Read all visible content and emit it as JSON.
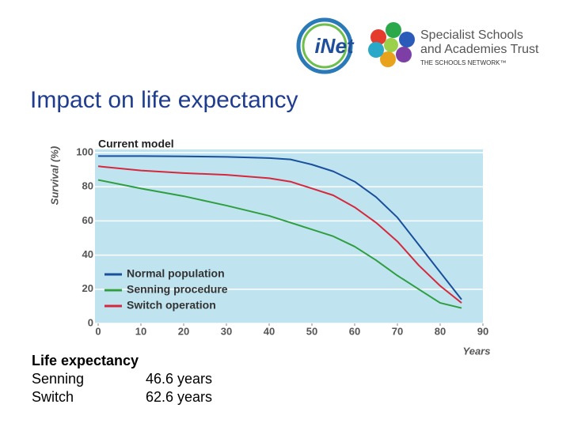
{
  "header": {
    "inet": "iNet",
    "org_line1": "Specialist Schools",
    "org_line2": "and Academies Trust",
    "network": "THE SCHOOLS NETWORK™"
  },
  "slide_title": "Impact on life expectancy",
  "notes": {
    "heading": "Life expectancy",
    "rows": [
      [
        "Senning",
        "46.6 years"
      ],
      [
        "Switch",
        "62.6 years"
      ]
    ]
  },
  "chart_data": {
    "type": "line",
    "title": "Current model",
    "x_label": "Years",
    "y_label": "Survival (%)",
    "x": [
      0,
      10,
      20,
      30,
      40,
      45,
      50,
      55,
      60,
      65,
      70,
      75,
      80,
      85
    ],
    "series": [
      {
        "name": "Normal population",
        "color": "#1a4f9c",
        "values": [
          98,
          98,
          97.8,
          97.5,
          96.8,
          96,
          93,
          89,
          83,
          74,
          62,
          46,
          30,
          14
        ]
      },
      {
        "name": "Senning procedure",
        "color": "#2e9e3e",
        "values": [
          84,
          79,
          74.5,
          69,
          63,
          59,
          55,
          51,
          45,
          37,
          28,
          20,
          12,
          9
        ]
      },
      {
        "name": "Switch operation",
        "color": "#d6283c",
        "values": [
          92,
          89.5,
          88,
          87,
          85,
          83,
          79,
          75,
          68,
          59,
          48,
          34,
          22,
          12
        ]
      }
    ],
    "xlim": [
      0,
      90
    ],
    "xticks": [
      0,
      10,
      20,
      30,
      40,
      50,
      60,
      70,
      80,
      90
    ],
    "ylim": [
      0,
      100
    ],
    "yticks": [
      0,
      20,
      40,
      60,
      80,
      100
    ],
    "grid": true,
    "legend": "lower left",
    "background": "#bfe4f0"
  }
}
